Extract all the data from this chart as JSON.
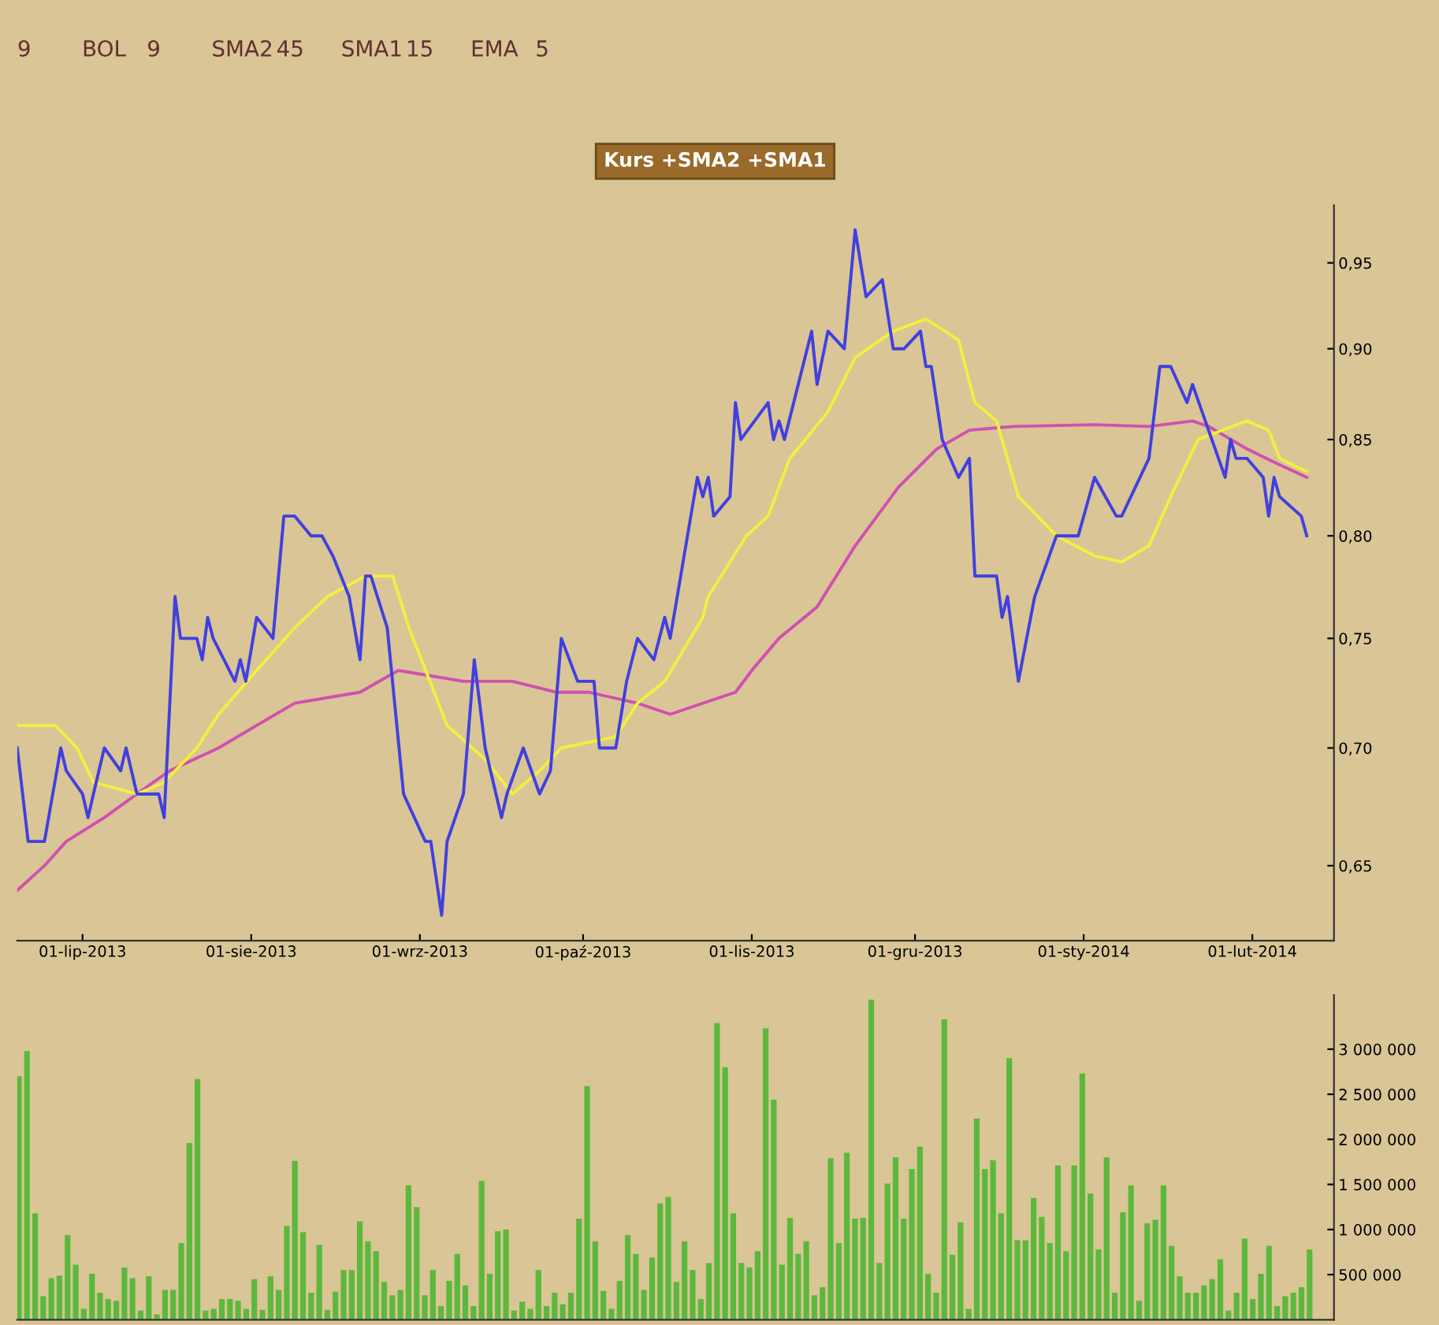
{
  "chart_data": [
    {
      "type": "line",
      "title": "Kurs +SMA2 +SMA1",
      "log": "y",
      "annotations": [
        "9",
        "BOL",
        "9",
        "SMA2",
        "45",
        "SMA1",
        "15",
        "EMA",
        "5"
      ],
      "xlim": [
        "2013-06-19",
        "2014-02-16"
      ],
      "xticks": [
        {
          "value": "2013-07-01",
          "label": "01-lip-2013"
        },
        {
          "value": "2013-08-01",
          "label": "01-sie-2013"
        },
        {
          "value": "2013-09-01",
          "label": "01-wrz-2013"
        },
        {
          "value": "2013-10-01",
          "label": "01-paź-2013"
        },
        {
          "value": "2013-11-01",
          "label": "01-lis-2013"
        },
        {
          "value": "2013-12-01",
          "label": "01-gru-2013"
        },
        {
          "value": "2014-01-01",
          "label": "01-sty-2014"
        },
        {
          "value": "2014-02-01",
          "label": "01-lut-2014"
        }
      ],
      "ylim": [
        0.62,
        0.985
      ],
      "yticks": [
        {
          "value": 0.65,
          "label": "0,65"
        },
        {
          "value": 0.7,
          "label": "0,70"
        },
        {
          "value": 0.75,
          "label": "0,75"
        },
        {
          "value": 0.8,
          "label": "0,80"
        },
        {
          "value": 0.85,
          "label": "0,85"
        },
        {
          "value": 0.9,
          "label": "0,90"
        },
        {
          "value": 0.95,
          "label": "0,95"
        }
      ],
      "series": [
        {
          "color": "#d050b0",
          "x": [
            "2013-06-19",
            "2013-06-24",
            "2013-06-28",
            "2013-07-05",
            "2013-07-11",
            "2013-07-17",
            "2013-07-26",
            "2013-08-02",
            "2013-08-09",
            "2013-08-21",
            "2013-08-28",
            "2013-09-09",
            "2013-09-18",
            "2013-09-26",
            "2013-10-02",
            "2013-10-11",
            "2013-10-17",
            "2013-10-29",
            "2013-11-01",
            "2013-11-06",
            "2013-11-13",
            "2013-11-20",
            "2013-11-28",
            "2013-12-05",
            "2013-12-11",
            "2013-12-19",
            "2014-01-03",
            "2014-01-13",
            "2014-01-21",
            "2014-01-24",
            "2014-01-31",
            "2014-02-05",
            "2014-02-11"
          ],
          "values": [
            0.64,
            0.65,
            0.66,
            0.67,
            0.68,
            0.69,
            0.7,
            0.71,
            0.72,
            0.725,
            0.735,
            0.73,
            0.73,
            0.725,
            0.725,
            0.72,
            0.715,
            0.725,
            0.735,
            0.75,
            0.765,
            0.795,
            0.825,
            0.845,
            0.855,
            0.857,
            0.858,
            0.857,
            0.86,
            0.857,
            0.845,
            0.838,
            0.83
          ]
        },
        {
          "color": "#f0f040",
          "x": [
            "2013-06-19",
            "2013-06-26",
            "2013-06-30",
            "2013-07-03",
            "2013-07-11",
            "2013-07-16",
            "2013-07-22",
            "2013-07-26",
            "2013-08-02",
            "2013-08-09",
            "2013-08-15",
            "2013-08-22",
            "2013-08-27",
            "2013-08-30",
            "2013-09-06",
            "2013-09-13",
            "2013-09-18",
            "2013-09-23",
            "2013-09-27",
            "2013-10-07",
            "2013-10-11",
            "2013-10-16",
            "2013-10-23",
            "2013-10-24",
            "2013-10-31",
            "2013-11-04",
            "2013-11-08",
            "2013-11-15",
            "2013-11-20",
            "2013-11-27",
            "2013-12-03",
            "2013-12-09",
            "2013-12-12",
            "2013-12-16",
            "2013-12-20",
            "2013-12-27",
            "2014-01-03",
            "2014-01-08",
            "2014-01-13",
            "2014-01-17",
            "2014-01-22",
            "2014-01-31",
            "2014-02-04",
            "2014-02-06",
            "2014-02-11"
          ],
          "values": [
            0.71,
            0.71,
            0.7,
            0.685,
            0.68,
            0.685,
            0.7,
            0.715,
            0.735,
            0.755,
            0.77,
            0.78,
            0.78,
            0.755,
            0.71,
            0.695,
            0.68,
            0.69,
            0.7,
            0.705,
            0.72,
            0.73,
            0.76,
            0.77,
            0.8,
            0.81,
            0.84,
            0.865,
            0.895,
            0.91,
            0.917,
            0.905,
            0.87,
            0.86,
            0.82,
            0.8,
            0.79,
            0.787,
            0.795,
            0.82,
            0.85,
            0.86,
            0.855,
            0.84,
            0.833
          ]
        },
        {
          "color": "#4040e0",
          "x": [
            "2013-06-19",
            "2013-06-21",
            "2013-06-24",
            "2013-06-27",
            "2013-06-28",
            "2013-07-01",
            "2013-07-02",
            "2013-07-03",
            "2013-07-05",
            "2013-07-08",
            "2013-07-09",
            "2013-07-11",
            "2013-07-15",
            "2013-07-16",
            "2013-07-18",
            "2013-07-19",
            "2013-07-22",
            "2013-07-23",
            "2013-07-24",
            "2013-07-25",
            "2013-07-26",
            "2013-07-29",
            "2013-07-30",
            "2013-07-31",
            "2013-08-02",
            "2013-08-05",
            "2013-08-07",
            "2013-08-09",
            "2013-08-12",
            "2013-08-14",
            "2013-08-16",
            "2013-08-19",
            "2013-08-21",
            "2013-08-22",
            "2013-08-23",
            "2013-08-26",
            "2013-08-29",
            "2013-09-02",
            "2013-09-03",
            "2013-09-05",
            "2013-09-06",
            "2013-09-09",
            "2013-09-11",
            "2013-09-13",
            "2013-09-16",
            "2013-09-17",
            "2013-09-20",
            "2013-09-23",
            "2013-09-25",
            "2013-09-27",
            "2013-09-30",
            "2013-10-03",
            "2013-10-04",
            "2013-10-07",
            "2013-10-09",
            "2013-10-11",
            "2013-10-14",
            "2013-10-16",
            "2013-10-17",
            "2013-10-22",
            "2013-10-23",
            "2013-10-24",
            "2013-10-25",
            "2013-10-28",
            "2013-10-29",
            "2013-10-30",
            "2013-11-04",
            "2013-11-05",
            "2013-11-06",
            "2013-11-07",
            "2013-11-12",
            "2013-11-13",
            "2013-11-15",
            "2013-11-18",
            "2013-11-20",
            "2013-11-22",
            "2013-11-25",
            "2013-11-27",
            "2013-11-29",
            "2013-12-02",
            "2013-12-03",
            "2013-12-04",
            "2013-12-06",
            "2013-12-09",
            "2013-12-11",
            "2013-12-12",
            "2013-12-16",
            "2013-12-17",
            "2013-12-18",
            "2013-12-20",
            "2013-12-23",
            "2013-12-27",
            "2013-12-31",
            "2014-01-03",
            "2014-01-07",
            "2014-01-08",
            "2014-01-13",
            "2014-01-15",
            "2014-01-17",
            "2014-01-20",
            "2014-01-21",
            "2014-01-27",
            "2014-01-28",
            "2014-01-29",
            "2014-01-31",
            "2014-02-03",
            "2014-02-04",
            "2014-02-05",
            "2014-02-06",
            "2014-02-10",
            "2014-02-11"
          ],
          "values": [
            0.7,
            0.66,
            0.66,
            0.7,
            0.69,
            0.68,
            0.67,
            0.68,
            0.7,
            0.69,
            0.7,
            0.68,
            0.68,
            0.67,
            0.77,
            0.75,
            0.75,
            0.74,
            0.76,
            0.75,
            0.745,
            0.73,
            0.74,
            0.73,
            0.76,
            0.75,
            0.81,
            0.81,
            0.8,
            0.8,
            0.79,
            0.77,
            0.74,
            0.78,
            0.78,
            0.755,
            0.68,
            0.66,
            0.66,
            0.63,
            0.66,
            0.68,
            0.74,
            0.7,
            0.67,
            0.68,
            0.7,
            0.68,
            0.69,
            0.75,
            0.73,
            0.73,
            0.7,
            0.7,
            0.73,
            0.75,
            0.74,
            0.76,
            0.75,
            0.83,
            0.82,
            0.83,
            0.81,
            0.82,
            0.87,
            0.85,
            0.87,
            0.85,
            0.86,
            0.85,
            0.91,
            0.88,
            0.91,
            0.9,
            0.97,
            0.93,
            0.94,
            0.9,
            0.9,
            0.91,
            0.89,
            0.89,
            0.85,
            0.83,
            0.84,
            0.78,
            0.78,
            0.76,
            0.77,
            0.73,
            0.77,
            0.8,
            0.8,
            0.83,
            0.81,
            0.81,
            0.84,
            0.89,
            0.89,
            0.87,
            0.88,
            0.83,
            0.85,
            0.84,
            0.84,
            0.83,
            0.81,
            0.83,
            0.82,
            0.81,
            0.8
          ]
        }
      ]
    },
    {
      "type": "bar",
      "tick_labels": "y",
      "color": "#5cb83c",
      "ylim": [
        0,
        3600000
      ],
      "yticks": [
        {
          "value": 500000,
          "label": "500 000"
        },
        {
          "value": 1000000,
          "label": "1 000 000"
        },
        {
          "value": 1500000,
          "label": "1 500 000"
        },
        {
          "value": 2000000,
          "label": "2 000 000"
        },
        {
          "value": 2500000,
          "label": "2 500 000"
        },
        {
          "value": 3000000,
          "label": "3 000 000"
        }
      ],
      "categories": [
        null,
        null,
        null,
        null,
        null,
        null,
        null,
        null,
        null,
        null,
        null,
        null,
        null,
        null,
        null,
        null,
        null,
        null,
        null,
        null,
        null,
        null,
        null,
        null,
        null,
        null,
        null,
        null,
        null,
        null,
        null,
        null,
        null,
        null,
        null,
        null,
        null,
        null,
        null,
        null,
        null,
        null,
        null,
        null,
        null,
        null,
        null,
        null,
        null,
        null,
        null,
        null,
        null,
        null,
        null,
        null,
        null,
        null,
        null,
        null,
        null,
        null,
        null,
        null,
        null,
        null,
        null,
        null,
        null,
        null,
        null,
        null,
        null,
        null,
        null,
        null,
        null,
        null,
        null,
        null,
        null,
        null,
        null,
        null,
        null,
        null,
        null,
        null,
        null,
        null,
        null,
        null,
        null,
        null,
        null,
        null,
        null,
        null,
        null,
        null,
        null,
        null,
        null,
        null,
        null,
        null,
        null,
        null,
        null,
        null,
        null,
        null,
        null,
        null,
        null,
        null,
        null,
        null,
        null,
        null,
        null,
        null,
        null,
        null,
        null,
        null,
        null,
        null,
        null,
        null,
        null,
        null,
        null,
        null,
        null,
        null,
        null,
        null,
        null,
        null,
        null,
        null,
        null,
        null,
        null,
        null,
        null,
        null,
        null,
        null,
        null,
        null,
        null,
        null,
        null,
        null,
        null,
        null,
        null,
        null
      ],
      "values": [
        2700000,
        2980000,
        1180000,
        260000,
        460000,
        490000,
        940000,
        610000,
        120000,
        510000,
        300000,
        230000,
        210000,
        580000,
        460000,
        100000,
        480000,
        60000,
        330000,
        330000,
        850000,
        1960000,
        2670000,
        100000,
        120000,
        230000,
        230000,
        210000,
        120000,
        450000,
        110000,
        480000,
        330000,
        1040000,
        1760000,
        970000,
        300000,
        830000,
        110000,
        310000,
        550000,
        550000,
        1090000,
        870000,
        760000,
        420000,
        270000,
        330000,
        1490000,
        1250000,
        270000,
        550000,
        150000,
        430000,
        730000,
        380000,
        150000,
        1540000,
        510000,
        980000,
        1000000,
        100000,
        200000,
        120000,
        550000,
        150000,
        300000,
        170000,
        300000,
        1120000,
        2590000,
        870000,
        320000,
        120000,
        430000,
        940000,
        730000,
        330000,
        690000,
        1290000,
        1360000,
        420000,
        870000,
        550000,
        230000,
        630000,
        3290000,
        2800000,
        1180000,
        630000,
        580000,
        760000,
        3230000,
        2440000,
        610000,
        1130000,
        730000,
        870000,
        270000,
        360000,
        1790000,
        850000,
        1850000,
        1120000,
        1130000,
        3550000,
        630000,
        1510000,
        1800000,
        1120000,
        1670000,
        1920000,
        510000,
        300000,
        3330000,
        720000,
        1080000,
        120000,
        2230000,
        1670000,
        1770000,
        1180000,
        2900000,
        880000,
        880000,
        1350000,
        1140000,
        850000,
        1710000,
        760000,
        1710000,
        2730000,
        1400000,
        780000,
        1800000,
        300000,
        1190000,
        1490000,
        210000,
        1070000,
        1110000,
        1490000,
        820000,
        480000,
        300000,
        300000,
        380000,
        450000,
        670000,
        100000,
        300000,
        900000,
        230000,
        510000,
        820000,
        150000,
        260000,
        300000,
        360000,
        780000
      ]
    }
  ]
}
